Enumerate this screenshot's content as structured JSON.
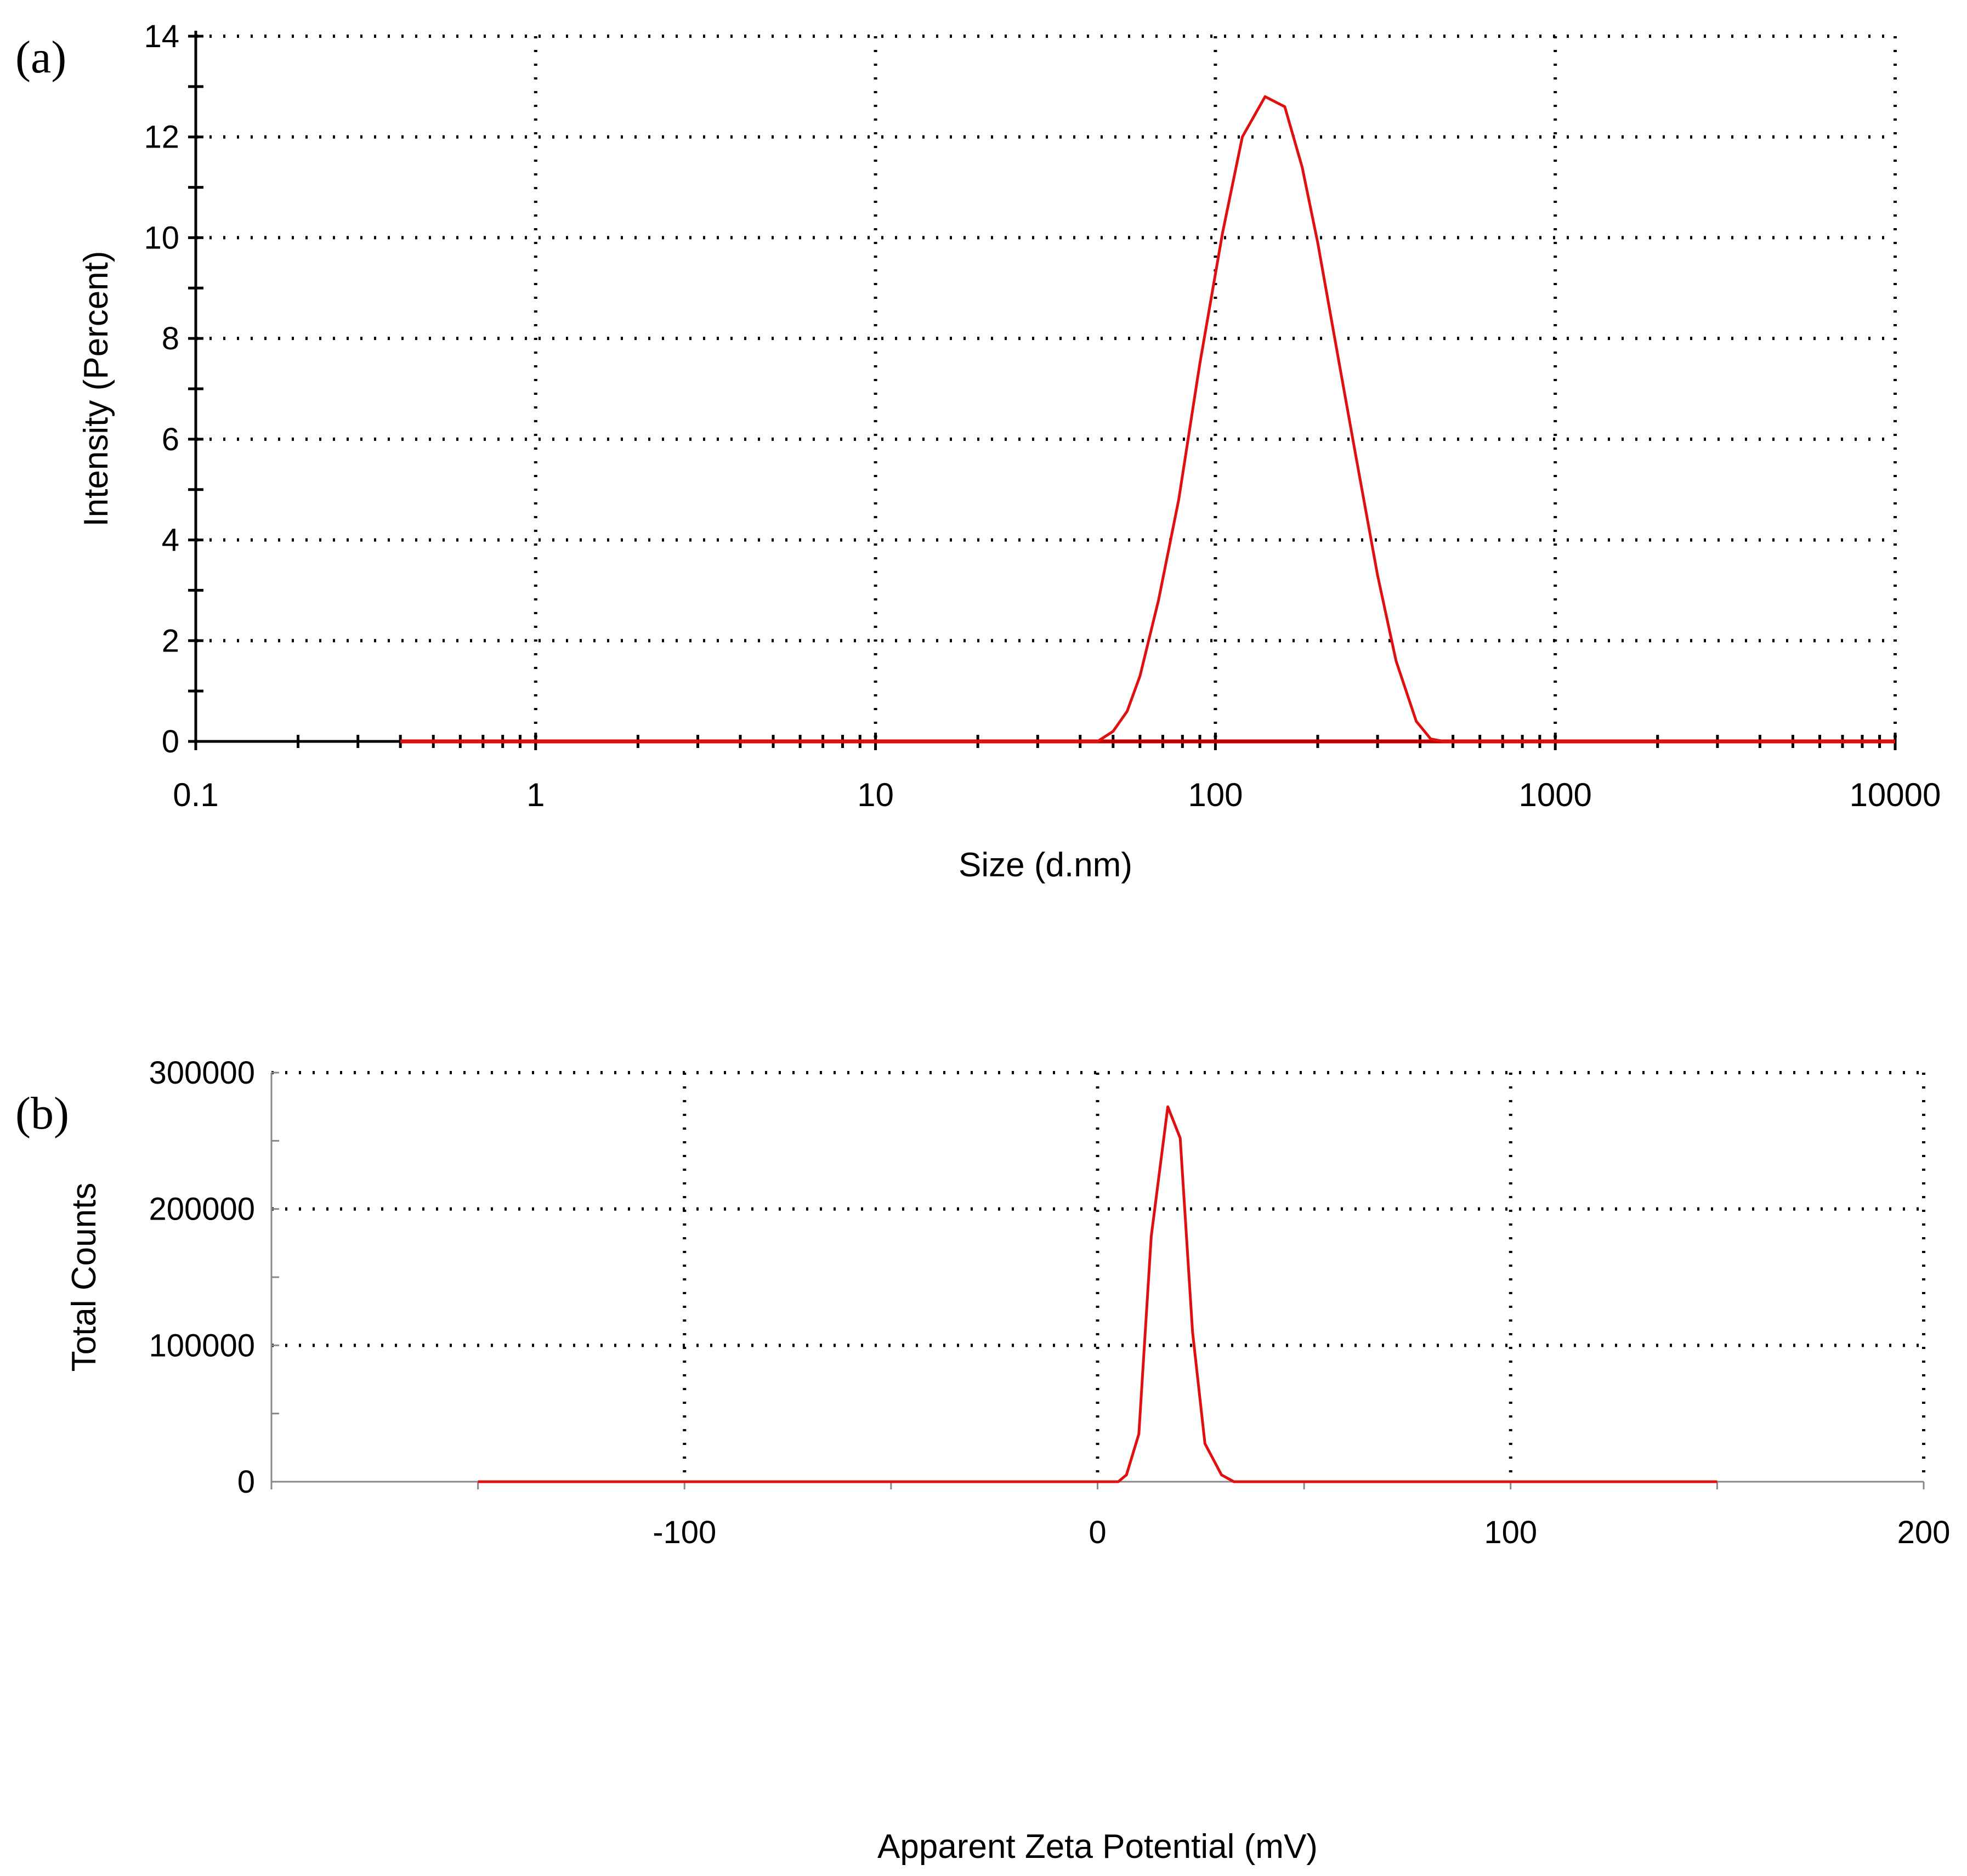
{
  "chart_data": [
    {
      "panel": "(a)",
      "type": "line",
      "x_scale": "log",
      "xlabel": "Size (d.nm)",
      "ylabel": "Intensity (Percent)",
      "xlim": [
        0.1,
        10000
      ],
      "ylim": [
        0,
        14
      ],
      "x_ticks": [
        0.1,
        1,
        10,
        100,
        1000,
        10000
      ],
      "x_tick_labels": [
        "0.1",
        "1",
        "10",
        "100",
        "1000",
        "10000"
      ],
      "y_ticks": [
        0,
        2,
        4,
        6,
        8,
        10,
        12,
        14
      ],
      "y_tick_labels": [
        "0",
        "2",
        "4",
        "6",
        "8",
        "10",
        "12",
        "14"
      ],
      "grid": true,
      "series": [
        {
          "name": "Intensity",
          "color": "#e01010",
          "x": [
            0.4,
            1,
            10,
            40,
            45,
            50,
            55,
            60,
            68,
            78,
            90,
            105,
            120,
            140,
            160,
            180,
            200,
            230,
            260,
            300,
            340,
            390,
            430,
            470,
            550,
            1000,
            5000,
            10000
          ],
          "y": [
            0,
            0,
            0,
            0,
            0,
            0.2,
            0.6,
            1.3,
            2.8,
            4.8,
            7.5,
            10.1,
            12.0,
            12.8,
            12.6,
            11.4,
            9.9,
            7.6,
            5.6,
            3.3,
            1.6,
            0.4,
            0.05,
            0,
            0,
            0,
            0,
            0
          ]
        }
      ]
    },
    {
      "panel": "(b)",
      "type": "line",
      "xlabel": "Apparent Zeta Potential (mV)",
      "ylabel": "Total Counts",
      "xlim": [
        -200,
        200
      ],
      "ylim": [
        0,
        300000
      ],
      "x_ticks": [
        -100,
        0,
        100,
        200
      ],
      "x_tick_labels": [
        "-100",
        "0",
        "100",
        "200"
      ],
      "y_ticks": [
        0,
        100000,
        200000,
        300000
      ],
      "y_tick_labels": [
        "0",
        "100000",
        "200000",
        "300000"
      ],
      "grid": true,
      "series": [
        {
          "name": "Total Counts",
          "color": "#e01010",
          "x": [
            -150,
            -50,
            0,
            5,
            7,
            10,
            13,
            17,
            20,
            23,
            26,
            30,
            33,
            50,
            150
          ],
          "y": [
            0,
            0,
            0,
            0,
            5000,
            35000,
            180000,
            275000,
            252000,
            110000,
            28000,
            5000,
            0,
            0,
            0
          ]
        }
      ]
    }
  ]
}
